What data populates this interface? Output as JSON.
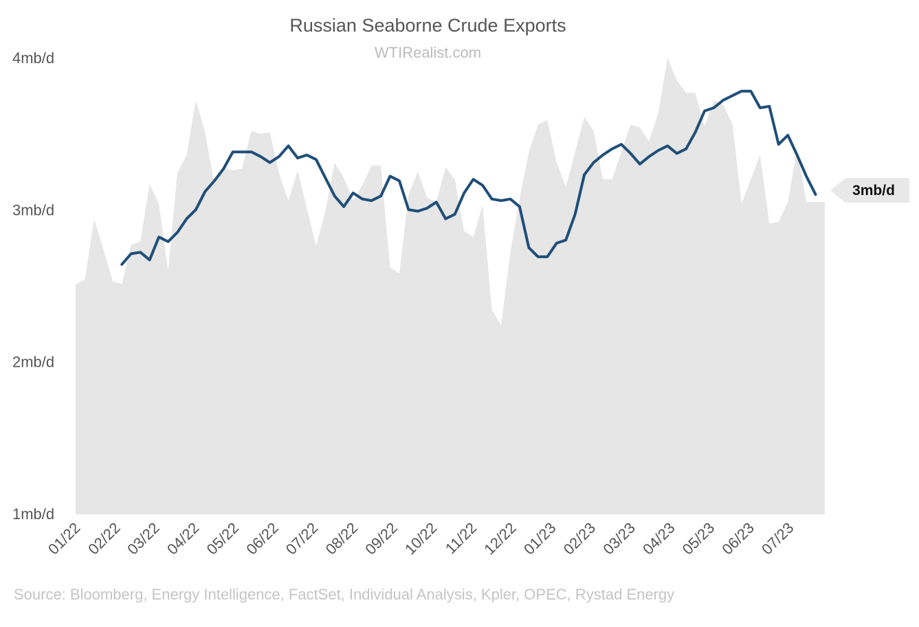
{
  "chart_data": {
    "type": "area",
    "title": "Russian Seaborne Crude Exports",
    "subtitle": "WTIRealist.com",
    "source": "Source: Bloomberg, Energy Intelligence, FactSet, Individual Analysis, Kpler, OPEC, Rystad Energy",
    "ylim": [
      1,
      4
    ],
    "yticks": [
      1,
      2,
      3,
      4
    ],
    "ytick_labels": [
      "1mb/d",
      "2mb/d",
      "3mb/d",
      "4mb/d"
    ],
    "xlim": [
      0,
      81
    ],
    "xtick_positions": [
      0,
      4.33,
      8.57,
      12.86,
      17.14,
      21.43,
      25.71,
      30,
      34.29,
      38.57,
      42.86,
      47.14,
      51.43,
      55.71,
      60,
      64.29,
      68.57,
      72.86,
      77.14
    ],
    "xtick_labels": [
      "01/22",
      "02/22",
      "03/22",
      "04/22",
      "05/22",
      "06/22",
      "07/22",
      "08/22",
      "09/22",
      "10/22",
      "11/22",
      "12/22",
      "01/23",
      "02/23",
      "03/23",
      "04/23",
      "05/23",
      "06/23",
      "07/23"
    ],
    "grid": false,
    "legend": "none",
    "colors": {
      "area": "#e6e6e6",
      "line": "#1f4e79",
      "label_bg": "#e8e8e8"
    },
    "end_label": "3mb/d",
    "series": [
      {
        "kind": "area",
        "x": [
          0,
          1,
          2,
          3,
          4,
          5,
          6,
          7,
          8,
          9,
          10,
          11,
          12,
          13,
          14,
          15,
          16,
          17,
          18,
          19,
          20,
          21,
          22,
          23,
          24,
          25,
          26,
          27,
          28,
          29,
          30,
          31,
          32,
          33,
          34,
          35,
          36,
          37,
          38,
          39,
          40,
          41,
          42,
          43,
          44,
          45,
          46,
          47,
          48,
          49,
          50,
          51,
          52,
          53,
          54,
          55,
          56,
          57,
          58,
          59,
          60,
          61,
          62,
          63,
          64,
          65,
          66,
          67,
          68,
          69,
          70,
          71,
          72,
          73,
          74,
          75,
          76,
          77,
          78,
          79,
          80,
          81
        ],
        "values": [
          2.51,
          2.54,
          2.94,
          2.74,
          2.53,
          2.51,
          2.77,
          2.79,
          3.17,
          3.04,
          2.6,
          3.24,
          3.36,
          3.72,
          3.51,
          3.17,
          3.27,
          3.26,
          3.27,
          3.52,
          3.5,
          3.51,
          3.24,
          3.06,
          3.26,
          3.01,
          2.76,
          2.99,
          3.31,
          3.21,
          3.06,
          3.16,
          3.29,
          3.29,
          2.62,
          2.58,
          3.1,
          3.25,
          3.08,
          3.05,
          3.28,
          3.2,
          2.86,
          2.82,
          3.03,
          2.34,
          2.24,
          2.72,
          3.07,
          3.38,
          3.56,
          3.59,
          3.31,
          3.15,
          3.38,
          3.61,
          3.52,
          3.2,
          3.2,
          3.38,
          3.56,
          3.54,
          3.45,
          3.64,
          4.0,
          3.85,
          3.77,
          3.77,
          3.55,
          3.72,
          3.69,
          3.57,
          3.04,
          3.2,
          3.36,
          2.91,
          2.92,
          3.05,
          3.4,
          3.05,
          3.05,
          3.05
        ]
      },
      {
        "kind": "line",
        "x": [
          5,
          6,
          7,
          8,
          9,
          10,
          11,
          12,
          13,
          14,
          15,
          16,
          17,
          18,
          19,
          20,
          21,
          22,
          23,
          24,
          25,
          26,
          27,
          28,
          29,
          30,
          31,
          32,
          33,
          34,
          35,
          36,
          37,
          38,
          39,
          40,
          41,
          42,
          43,
          44,
          45,
          46,
          47,
          48,
          49,
          50,
          51,
          52,
          53,
          54,
          55,
          56,
          57,
          58,
          59,
          60,
          61,
          62,
          63,
          64,
          65,
          66,
          67,
          68,
          69,
          70,
          71,
          72,
          73,
          74,
          75,
          76,
          77,
          78,
          79,
          80
        ],
        "values": [
          2.64,
          2.71,
          2.72,
          2.67,
          2.82,
          2.79,
          2.85,
          2.94,
          3.0,
          3.12,
          3.19,
          3.27,
          3.38,
          3.38,
          3.38,
          3.35,
          3.31,
          3.35,
          3.42,
          3.34,
          3.36,
          3.33,
          3.21,
          3.09,
          3.02,
          3.11,
          3.07,
          3.06,
          3.09,
          3.22,
          3.19,
          3.0,
          2.99,
          3.01,
          3.05,
          2.94,
          2.97,
          3.11,
          3.2,
          3.16,
          3.07,
          3.06,
          3.07,
          3.02,
          2.75,
          2.69,
          2.69,
          2.78,
          2.8,
          2.97,
          3.23,
          3.31,
          3.36,
          3.4,
          3.43,
          3.37,
          3.3,
          3.35,
          3.39,
          3.42,
          3.37,
          3.4,
          3.51,
          3.65,
          3.67,
          3.72,
          3.75,
          3.78,
          3.78,
          3.67,
          3.68,
          3.43,
          3.49,
          3.36,
          3.22,
          3.1
        ]
      }
    ]
  }
}
